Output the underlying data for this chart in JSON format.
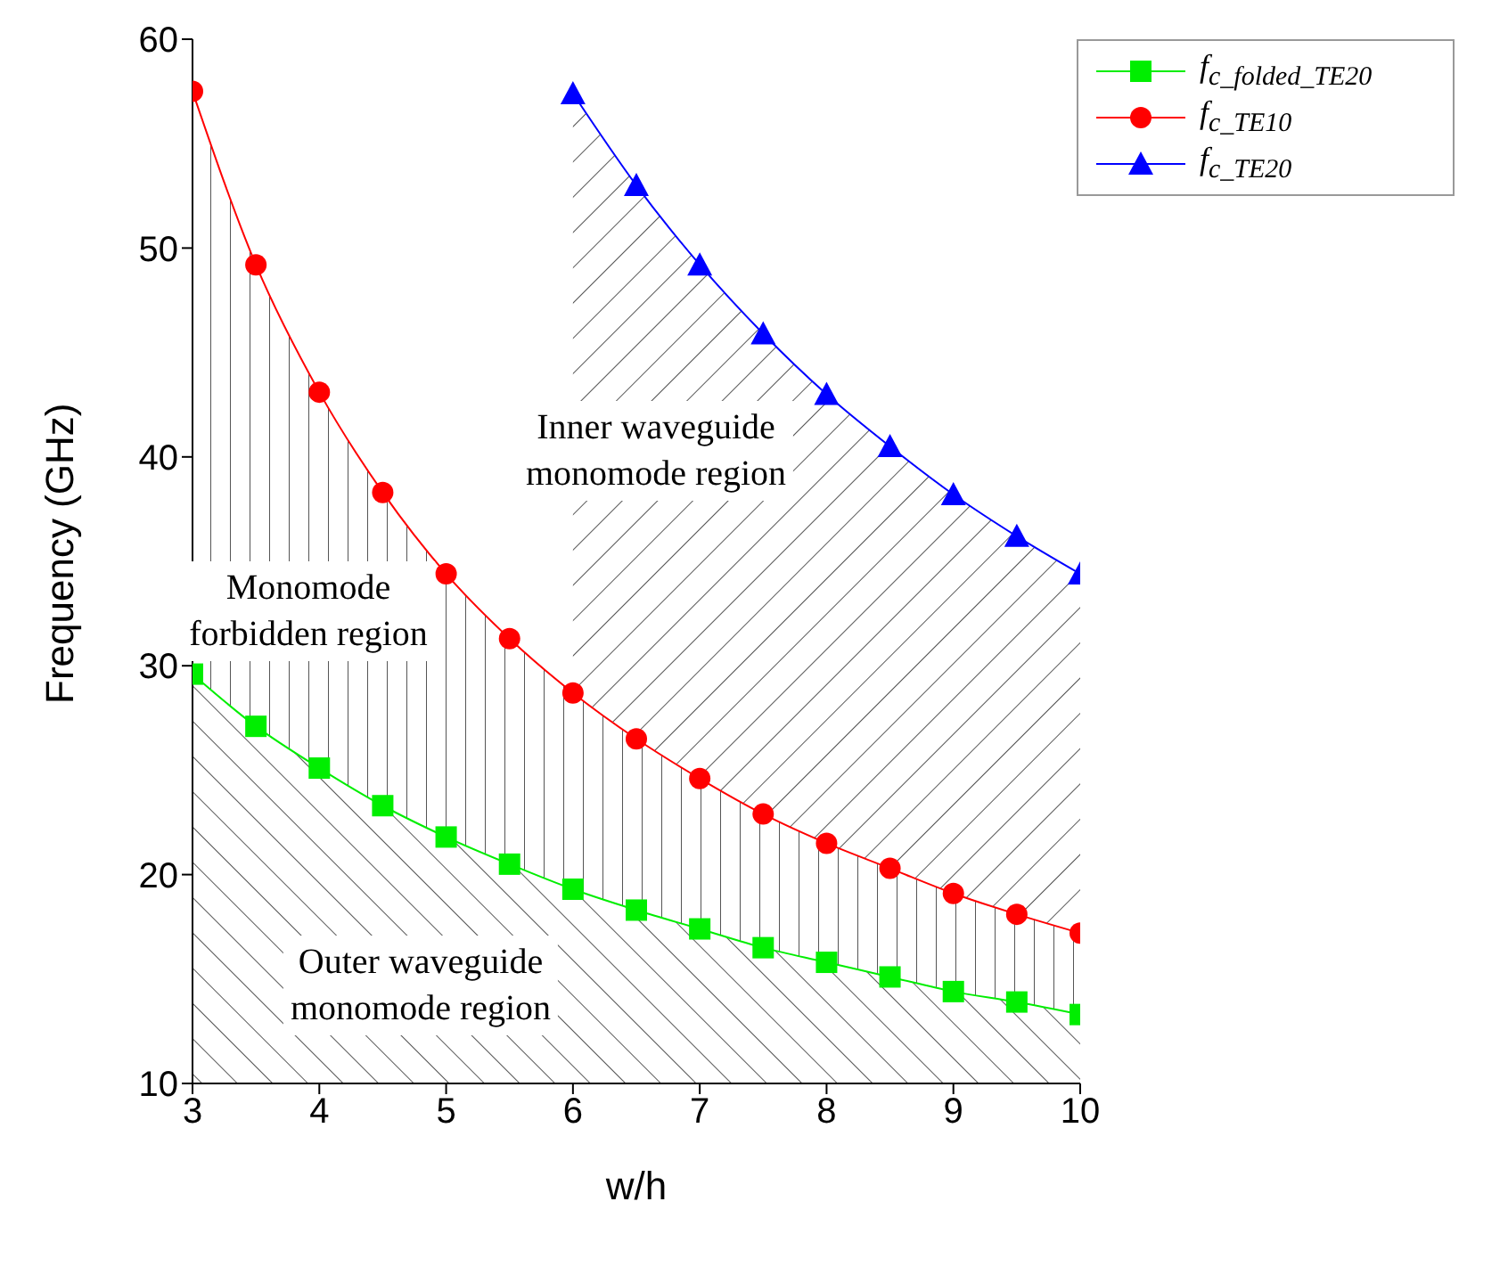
{
  "chart_data": {
    "type": "area",
    "xlabel": "w/h",
    "ylabel": "Frequency (GHz)",
    "x": [
      3,
      3.5,
      4,
      4.5,
      5,
      5.5,
      6,
      6.5,
      7,
      7.5,
      8,
      8.5,
      9,
      9.5,
      10
    ],
    "series": [
      {
        "name": "f$_{c_folded_TE20}$",
        "color": "#00ee00",
        "marker": "square",
        "values": [
          29.6,
          27.1,
          25.1,
          23.3,
          21.8,
          20.5,
          19.3,
          18.3,
          17.4,
          16.5,
          15.8,
          15.1,
          14.4,
          13.9,
          13.3
        ]
      },
      {
        "name": "f$_{c_TE10}$",
        "color": "#ff0000",
        "marker": "circle",
        "values": [
          57.5,
          49.2,
          43.1,
          38.3,
          34.4,
          31.3,
          28.7,
          26.5,
          24.6,
          22.9,
          21.5,
          20.3,
          19.1,
          18.1,
          17.2
        ]
      },
      {
        "name": "f$_{c_TE20}$",
        "color": "#0000ff",
        "marker": "triangle",
        "values": [
          null,
          null,
          null,
          null,
          null,
          null,
          57.4,
          53.0,
          49.2,
          45.9,
          43.0,
          40.5,
          38.2,
          36.2,
          34.4
        ]
      }
    ],
    "xlim": [
      3,
      10
    ],
    "xticks": [
      3,
      4,
      5,
      6,
      7,
      8,
      9,
      10
    ],
    "ylim": [
      10,
      60
    ],
    "yticks": [
      10,
      20,
      30,
      40,
      50,
      60
    ],
    "grid": false,
    "legend": "top right",
    "annotations": [
      "Inner waveguide\nmonomode region",
      "Monomode\nforbidden region",
      "Outer waveguide\nmonomode region"
    ]
  }
}
